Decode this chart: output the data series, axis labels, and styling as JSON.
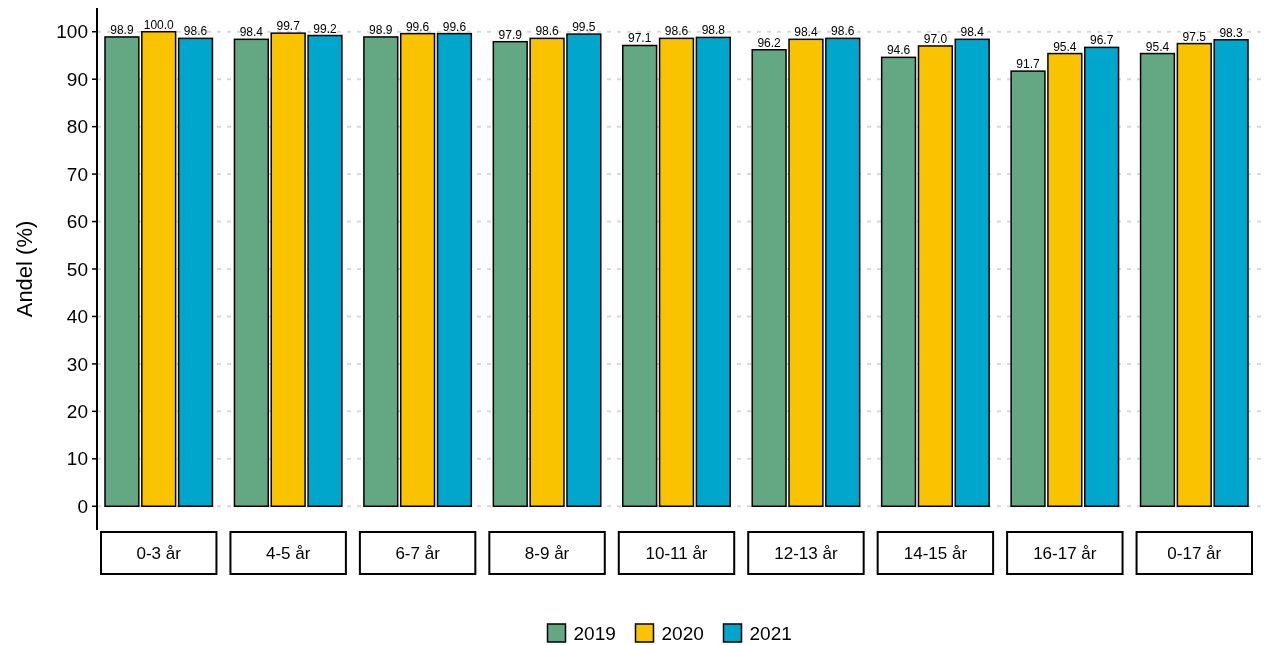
{
  "chart_data": {
    "type": "bar",
    "ylabel": "Andel (%)",
    "categories": [
      "0-3 år",
      "4-5 år",
      "6-7 år",
      "8-9 år",
      "10-11 år",
      "12-13 år",
      "14-15 år",
      "16-17 år",
      "0-17 år"
    ],
    "series": [
      {
        "name": "2019",
        "color": "#63a883",
        "values": [
          98.9,
          98.4,
          98.9,
          97.9,
          97.1,
          96.2,
          94.6,
          91.7,
          95.4
        ],
        "value_labels": [
          "98.9",
          "98.4",
          "98.9",
          "97.9",
          "97.1",
          "96.2",
          "94.6",
          "91.7",
          "95.4"
        ]
      },
      {
        "name": "2020",
        "color": "#f9c300",
        "values": [
          100,
          99.7,
          99.6,
          98.6,
          98.6,
          98.4,
          97,
          95.4,
          97.5
        ],
        "value_labels": [
          "100.0",
          "99.7",
          "99.6",
          "98.6",
          "98.6",
          "98.4",
          "97.0",
          "95.4",
          "97.5"
        ]
      },
      {
        "name": "2021",
        "color": "#00a6cb",
        "values": [
          98.6,
          99.2,
          99.6,
          99.5,
          98.8,
          98.6,
          98.4,
          96.7,
          98.3
        ],
        "value_labels": [
          "98.6",
          "99.2",
          "99.6",
          "99.5",
          "98.8",
          "98.6",
          "98.4",
          "96.7",
          "98.3"
        ]
      }
    ],
    "ylim": [
      -5,
      105
    ],
    "yticks": [
      0,
      10,
      20,
      30,
      40,
      50,
      60,
      70,
      80,
      90,
      100
    ],
    "grid": "y",
    "legend": "bottom"
  }
}
